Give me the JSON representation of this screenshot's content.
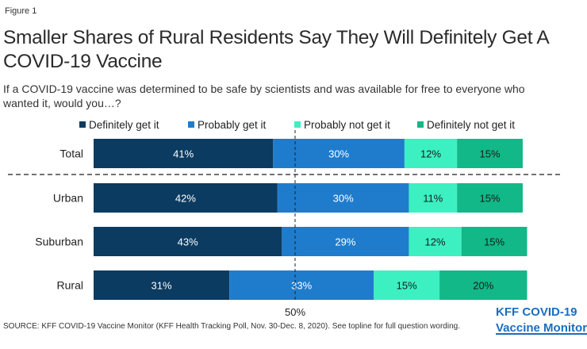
{
  "figure_label": "Figure 1",
  "title": "Smaller Shares of Rural Residents Say They Will Definitely Get A COVID-19 Vaccine",
  "subtitle": "If a COVID-19 vaccine was determined to be safe by scientists and was available for free to everyone who wanted it, would you…?",
  "source": "SOURCE: KFF COVID-19 Vaccine Monitor (KFF Health Tracking Poll, Nov. 30-Dec. 8, 2020). See topline for full question wording.",
  "brand": {
    "line1": "KFF COVID-19",
    "line2": "Vaccine Monitor"
  },
  "chart_data": {
    "type": "bar",
    "orientation": "horizontal",
    "stacked": true,
    "categories": [
      "Total",
      "Urban",
      "Suburban",
      "Rural"
    ],
    "series": [
      {
        "name": "Definitely get it",
        "color": "#0b3b61",
        "values": [
          41,
          42,
          43,
          31
        ]
      },
      {
        "name": "Probably get it",
        "color": "#1f7ccc",
        "values": [
          30,
          30,
          29,
          33
        ]
      },
      {
        "name": "Probably not get it",
        "color": "#3cf0c2",
        "values": [
          12,
          11,
          12,
          15
        ]
      },
      {
        "name": "Definitely not get it",
        "color": "#12b887",
        "values": [
          15,
          15,
          15,
          20
        ]
      }
    ],
    "data_labels": [
      [
        "41%",
        "30%",
        "12%",
        "15%"
      ],
      [
        "42%",
        "30%",
        "11%",
        "15%"
      ],
      [
        "43%",
        "29%",
        "12%",
        "15%"
      ],
      [
        "31%",
        "33%",
        "15%",
        "20%"
      ]
    ],
    "reference_line": {
      "value": 50,
      "label": "50%"
    },
    "separator_after": "Total",
    "legend_position": "top",
    "xlim": [
      0,
      100
    ]
  }
}
